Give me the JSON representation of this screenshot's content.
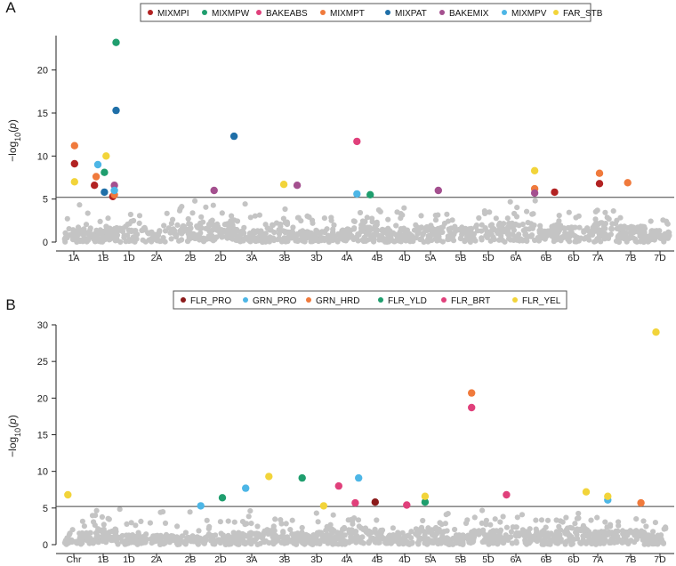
{
  "chart_data": [
    {
      "type": "scatter",
      "panel_letter": "A",
      "ylabel": "−log10(p)",
      "ylim": [
        0,
        24
      ],
      "yticks": [
        0,
        5,
        10,
        15,
        20
      ],
      "threshold": 5.2,
      "x_tick_labels": [
        "1A",
        "1B",
        "1D",
        "2A",
        "2B",
        "2D",
        "3A",
        "3B",
        "3D",
        "4A",
        "4B",
        "4D",
        "5A",
        "5B",
        "5D",
        "6A",
        "6B",
        "6D",
        "7A",
        "7B",
        "7D"
      ],
      "legend": {
        "placement": "top-center"
      },
      "series": [
        {
          "name": "MIXMPI",
          "color": "#b22222",
          "points": [
            [
              0.9,
              9.1
            ],
            [
              2.1,
              6.6
            ],
            [
              3.2,
              5.3
            ],
            [
              29.8,
              5.8
            ],
            [
              32.5,
              6.8
            ]
          ]
        },
        {
          "name": "MIXMPW",
          "color": "#1f9e6e",
          "points": [
            [
              3.4,
              23.2
            ],
            [
              2.7,
              8.1
            ],
            [
              18.7,
              5.5
            ]
          ]
        },
        {
          "name": "BAKEABS",
          "color": "#e0407b",
          "points": [
            [
              17.9,
              11.7
            ]
          ]
        },
        {
          "name": "MIXMPT",
          "color": "#f07a3c",
          "points": [
            [
              0.9,
              11.2
            ],
            [
              2.2,
              7.6
            ],
            [
              3.3,
              5.5
            ],
            [
              28.6,
              6.2
            ],
            [
              32.5,
              8.0
            ],
            [
              34.2,
              6.9
            ]
          ]
        },
        {
          "name": "MIXPAT",
          "color": "#1f6fa8",
          "points": [
            [
              3.4,
              15.3
            ],
            [
              2.7,
              5.8
            ],
            [
              10.5,
              12.3
            ]
          ]
        },
        {
          "name": "BAKEMIX",
          "color": "#a4508f",
          "points": [
            [
              3.3,
              6.6
            ],
            [
              9.3,
              6.0
            ],
            [
              14.3,
              6.6
            ],
            [
              22.8,
              6.0
            ],
            [
              28.6,
              5.7
            ]
          ]
        },
        {
          "name": "MIXMPV",
          "color": "#4db6e6",
          "points": [
            [
              2.3,
              9.0
            ],
            [
              3.3,
              6.0
            ],
            [
              17.9,
              5.6
            ]
          ]
        },
        {
          "name": "FAR_STB",
          "color": "#f2d43a",
          "points": [
            [
              0.9,
              7.0
            ],
            [
              2.8,
              10.0
            ],
            [
              13.5,
              6.7
            ],
            [
              28.6,
              8.3
            ]
          ]
        }
      ]
    },
    {
      "type": "scatter",
      "panel_letter": "B",
      "ylabel": "−log10(p)",
      "ylim": [
        0,
        30
      ],
      "yticks": [
        0,
        5,
        10,
        15,
        20,
        25,
        30
      ],
      "threshold": 5.2,
      "x_tick_labels": [
        "Chr",
        "1B",
        "1D",
        "2A",
        "2B",
        "2D",
        "3A",
        "3B",
        "3D",
        "4A",
        "4B",
        "4D",
        "5A",
        "5B",
        "5D",
        "6A",
        "6B",
        "6D",
        "7A",
        "7B",
        "7D"
      ],
      "legend": {
        "placement": "top-center"
      },
      "series": [
        {
          "name": "FLR_PRO",
          "color": "#8b1a1a",
          "points": [
            [
              19.0,
              5.8
            ]
          ]
        },
        {
          "name": "GRN_PRO",
          "color": "#4db6e6",
          "points": [
            [
              8.5,
              5.3
            ],
            [
              11.2,
              7.7
            ],
            [
              18.0,
              9.1
            ],
            [
              33.0,
              6.1
            ]
          ]
        },
        {
          "name": "GRN_HRD",
          "color": "#f07a3c",
          "points": [
            [
              24.8,
              20.7
            ],
            [
              35.0,
              5.7
            ]
          ]
        },
        {
          "name": "FLR_YLD",
          "color": "#1f9e6e",
          "points": [
            [
              9.8,
              6.4
            ],
            [
              14.6,
              9.1
            ],
            [
              22.0,
              5.8
            ]
          ]
        },
        {
          "name": "FLR_BRT",
          "color": "#e0407b",
          "points": [
            [
              16.8,
              8.0
            ],
            [
              17.8,
              5.7
            ],
            [
              20.9,
              5.4
            ],
            [
              24.8,
              18.7
            ],
            [
              26.9,
              6.8
            ]
          ]
        },
        {
          "name": "FLR_YEL",
          "color": "#f2d43a",
          "points": [
            [
              0.5,
              6.8
            ],
            [
              12.6,
              9.3
            ],
            [
              15.9,
              5.3
            ],
            [
              22.0,
              6.6
            ],
            [
              31.7,
              7.2
            ],
            [
              33.0,
              6.6
            ],
            [
              35.9,
              29.0
            ]
          ]
        }
      ]
    }
  ]
}
